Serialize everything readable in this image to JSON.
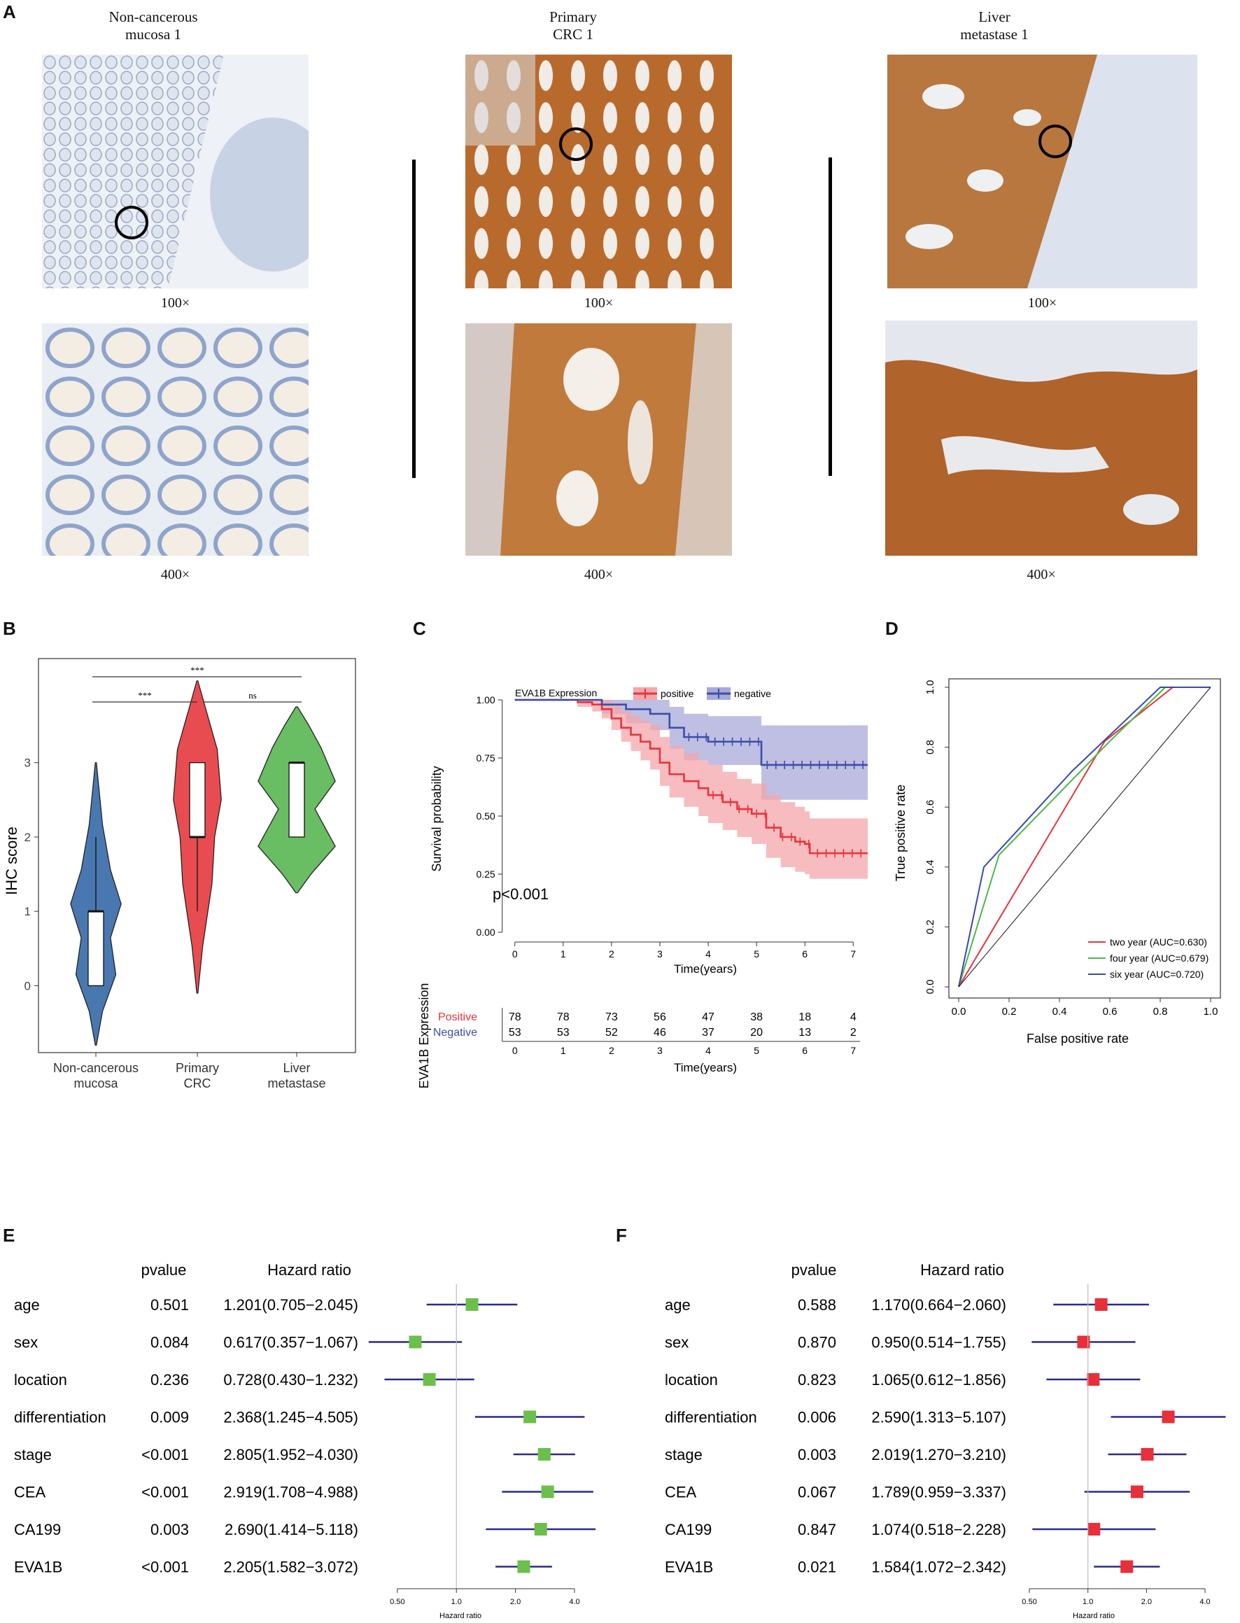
{
  "panel_a": {
    "letter": "A",
    "columns": [
      {
        "title_line1": "Non-cancerous",
        "title_line2": "mucosa 1",
        "mag_top": "100×",
        "mag_bottom": "400×"
      },
      {
        "title_line1": "Primary",
        "title_line2": "CRC 1",
        "mag_top": "100×",
        "mag_bottom": "400×"
      },
      {
        "title_line1": "Liver",
        "title_line2": "metastase 1",
        "mag_top": "100×",
        "mag_bottom": "400×"
      }
    ]
  },
  "colors": {
    "violin_blue": "#4978b0",
    "violin_red": "#e84c50",
    "violin_green": "#69bd63",
    "km_positive": "#e8343c",
    "km_negative": "#3c4ea8",
    "roc_two": "#e8343c",
    "roc_four": "#4cb848",
    "roc_six": "#3a48b0",
    "forest_green": "#6cbf4a",
    "forest_red": "#e8303a",
    "forest_line": "#2a2a8c",
    "stain_brown": "#b86a2c",
    "stain_blue": "#8ea4cc"
  },
  "panel_b": {
    "letter": "B",
    "ylabel": "IHC score",
    "yticks": [
      "0",
      "1",
      "2",
      "3"
    ],
    "groups": [
      {
        "line1": "Non-cancerous",
        "line2": "mucosa"
      },
      {
        "line1": "Primary",
        "line2": "CRC"
      },
      {
        "line1": "Liver",
        "line2": "metastase"
      }
    ],
    "sig": {
      "top": "***",
      "left": "***",
      "right": "ns"
    }
  },
  "panel_c": {
    "letter": "C",
    "legend_title": "EVA1B Expression",
    "legend_positive": "positive",
    "legend_negative": "negative",
    "ylabel": "Survival probability",
    "xlabel": "Time(years)",
    "yticks": [
      "0.00",
      "0.25",
      "0.50",
      "0.75",
      "1.00"
    ],
    "xticks": [
      "0",
      "1",
      "2",
      "3",
      "4",
      "5",
      "6",
      "7"
    ],
    "pvalue": "p<0.001",
    "risk_table": {
      "ylabel": "EVA1B Expression",
      "row_labels": [
        "Positive",
        "Negative"
      ],
      "positive": [
        "78",
        "78",
        "73",
        "56",
        "47",
        "38",
        "18",
        "4"
      ],
      "negative": [
        "53",
        "53",
        "52",
        "46",
        "37",
        "20",
        "13",
        "2"
      ],
      "xlabel": "Time(years)"
    }
  },
  "panel_d": {
    "letter": "D",
    "ylabel": "True positive rate",
    "xlabel": "False positive rate",
    "ticks": [
      "0.0",
      "0.2",
      "0.4",
      "0.6",
      "0.8",
      "1.0"
    ],
    "legend": [
      "two year (AUC=0.630)",
      "four year (AUC=0.679)",
      "six year (AUC=0.720)"
    ]
  },
  "panel_e": {
    "letter": "E",
    "header_p": "pvalue",
    "header_hr": "Hazard ratio",
    "axis_label": "Hazard ratio",
    "axis_ticks": [
      "0.50",
      "1.0",
      "2.0",
      "4.0"
    ],
    "rows": [
      {
        "name": "age",
        "p": "0.501",
        "hr": "1.201(0.705−2.045)"
      },
      {
        "name": "sex",
        "p": "0.084",
        "hr": "0.617(0.357−1.067)"
      },
      {
        "name": "location",
        "p": "0.236",
        "hr": "0.728(0.430−1.232)"
      },
      {
        "name": "differentiation",
        "p": "0.009",
        "hr": "2.368(1.245−4.505)"
      },
      {
        "name": "stage",
        "p": "<0.001",
        "hr": "2.805(1.952−4.030)"
      },
      {
        "name": "CEA",
        "p": "<0.001",
        "hr": "2.919(1.708−4.988)"
      },
      {
        "name": "CA199",
        "p": "0.003",
        "hr": "2.690(1.414−5.118)"
      },
      {
        "name": "EVA1B",
        "p": "<0.001",
        "hr": "2.205(1.582−3.072)"
      }
    ]
  },
  "panel_f": {
    "letter": "F",
    "header_p": "pvalue",
    "header_hr": "Hazard ratio",
    "axis_label": "Hazard ratio",
    "axis_ticks": [
      "0.50",
      "1.0",
      "2.0",
      "4.0"
    ],
    "rows": [
      {
        "name": "age",
        "p": "0.588",
        "hr": "1.170(0.664−2.060)"
      },
      {
        "name": "sex",
        "p": "0.870",
        "hr": "0.950(0.514−1.755)"
      },
      {
        "name": "location",
        "p": "0.823",
        "hr": "1.065(0.612−1.856)"
      },
      {
        "name": "differentiation",
        "p": "0.006",
        "hr": "2.590(1.313−5.107)"
      },
      {
        "name": "stage",
        "p": "0.003",
        "hr": "2.019(1.270−3.210)"
      },
      {
        "name": "CEA",
        "p": "0.067",
        "hr": "1.789(0.959−3.337)"
      },
      {
        "name": "CA199",
        "p": "0.847",
        "hr": "1.074(0.518−2.228)"
      },
      {
        "name": "EVA1B",
        "p": "0.021",
        "hr": "1.584(1.072−2.342)"
      }
    ]
  },
  "chart_data": [
    {
      "type": "violin",
      "panel": "B",
      "ylabel": "IHC score",
      "categories": [
        "Non-cancerous mucosa",
        "Primary CRC",
        "Liver metastase"
      ],
      "ylim": [
        -0.9,
        4.4
      ],
      "box": [
        {
          "q1": 0,
          "median": 1,
          "q3": 1,
          "whisker_low": 0,
          "whisker_high": 2
        },
        {
          "q1": 2,
          "median": 2,
          "q3": 3,
          "whisker_low": 1,
          "whisker_high": 3
        },
        {
          "q1": 2,
          "median": 3,
          "q3": 3,
          "whisker_low": 2,
          "whisker_high": 3
        }
      ],
      "violin_range": [
        [
          -0.8,
          3.0
        ],
        [
          -0.1,
          4.1
        ],
        [
          1.25,
          3.75
        ]
      ]
    },
    {
      "type": "line",
      "panel": "C",
      "xlabel": "Time(years)",
      "ylabel": "Survival probability",
      "xlim": [
        -0.3,
        7.3
      ],
      "ylim": [
        0,
        1
      ],
      "series": [
        {
          "name": "positive",
          "x": [
            0,
            1.3,
            1.6,
            1.8,
            2.0,
            2.2,
            2.4,
            2.6,
            2.8,
            3.0,
            3.2,
            3.5,
            3.8,
            4.0,
            4.3,
            4.6,
            4.9,
            5.2,
            5.5,
            5.8,
            6.0,
            6.1,
            7.3
          ],
          "y": [
            1.0,
            0.99,
            0.98,
            0.96,
            0.92,
            0.88,
            0.85,
            0.82,
            0.79,
            0.73,
            0.68,
            0.65,
            0.62,
            0.59,
            0.56,
            0.53,
            0.51,
            0.45,
            0.41,
            0.39,
            0.38,
            0.34,
            0.34
          ],
          "ci_low": [
            1.0,
            0.97,
            0.95,
            0.92,
            0.87,
            0.82,
            0.78,
            0.74,
            0.7,
            0.63,
            0.58,
            0.54,
            0.5,
            0.47,
            0.44,
            0.41,
            0.38,
            0.32,
            0.28,
            0.26,
            0.25,
            0.23,
            0.23
          ],
          "ci_high": [
            1.0,
            1.0,
            1.0,
            1.0,
            0.98,
            0.95,
            0.93,
            0.91,
            0.89,
            0.84,
            0.8,
            0.77,
            0.74,
            0.72,
            0.69,
            0.66,
            0.64,
            0.59,
            0.56,
            0.54,
            0.52,
            0.49,
            0.49
          ]
        },
        {
          "name": "negative",
          "x": [
            0,
            1.8,
            2.3,
            2.8,
            3.2,
            3.5,
            4.0,
            5.1,
            7.3
          ],
          "y": [
            1.0,
            0.98,
            0.96,
            0.94,
            0.88,
            0.84,
            0.82,
            0.72,
            0.72
          ],
          "ci_low": [
            1.0,
            0.94,
            0.9,
            0.87,
            0.79,
            0.74,
            0.72,
            0.57,
            0.57
          ],
          "ci_high": [
            1.0,
            1.0,
            1.0,
            1.0,
            0.97,
            0.94,
            0.93,
            0.89,
            0.89
          ]
        }
      ],
      "pvalue": "p<0.001"
    },
    {
      "type": "line",
      "panel": "D",
      "xlabel": "False positive rate",
      "ylabel": "True positive rate",
      "xlim": [
        0,
        1
      ],
      "ylim": [
        0,
        1
      ],
      "series": [
        {
          "name": "two year (AUC=0.630)",
          "x": [
            0,
            0.58,
            0.85,
            1.0
          ],
          "y": [
            0,
            0.82,
            1.0,
            1.0
          ]
        },
        {
          "name": "four year (AUC=0.679)",
          "x": [
            0,
            0.16,
            0.6,
            0.82,
            1.0
          ],
          "y": [
            0,
            0.44,
            0.82,
            1.0,
            1.0
          ]
        },
        {
          "name": "six year (AUC=0.720)",
          "x": [
            0,
            0.1,
            0.45,
            0.8,
            1.0
          ],
          "y": [
            0,
            0.4,
            0.72,
            1.0,
            1.0
          ]
        },
        {
          "name": "",
          "x": [
            0,
            1
          ],
          "y": [
            0,
            1
          ]
        }
      ]
    },
    {
      "type": "forest",
      "panel": "E",
      "xlabel": "Hazard ratio",
      "scale": "log2",
      "xlim": [
        0.45,
        4.6
      ],
      "ref": 1,
      "categories": [
        "age",
        "sex",
        "location",
        "differentiation",
        "stage",
        "CEA",
        "CA199",
        "EVA1B"
      ],
      "hr": [
        1.201,
        0.617,
        0.728,
        2.368,
        2.805,
        2.919,
        2.69,
        2.205
      ],
      "lower": [
        0.705,
        0.357,
        0.43,
        1.245,
        1.952,
        1.708,
        1.414,
        1.582
      ],
      "upper": [
        2.045,
        1.067,
        1.232,
        4.505,
        4.03,
        4.988,
        5.118,
        3.072
      ]
    },
    {
      "type": "forest",
      "panel": "F",
      "xlabel": "Hazard ratio",
      "scale": "log2",
      "xlim": [
        0.5,
        5.3
      ],
      "ref": 1,
      "categories": [
        "age",
        "sex",
        "location",
        "differentiation",
        "stage",
        "CEA",
        "CA199",
        "EVA1B"
      ],
      "hr": [
        1.17,
        0.95,
        1.065,
        2.59,
        2.019,
        1.789,
        1.074,
        1.584
      ],
      "lower": [
        0.664,
        0.514,
        0.612,
        1.313,
        1.27,
        0.959,
        0.518,
        1.072
      ],
      "upper": [
        2.06,
        1.755,
        1.856,
        5.107,
        3.21,
        3.337,
        2.228,
        2.342
      ]
    }
  ]
}
